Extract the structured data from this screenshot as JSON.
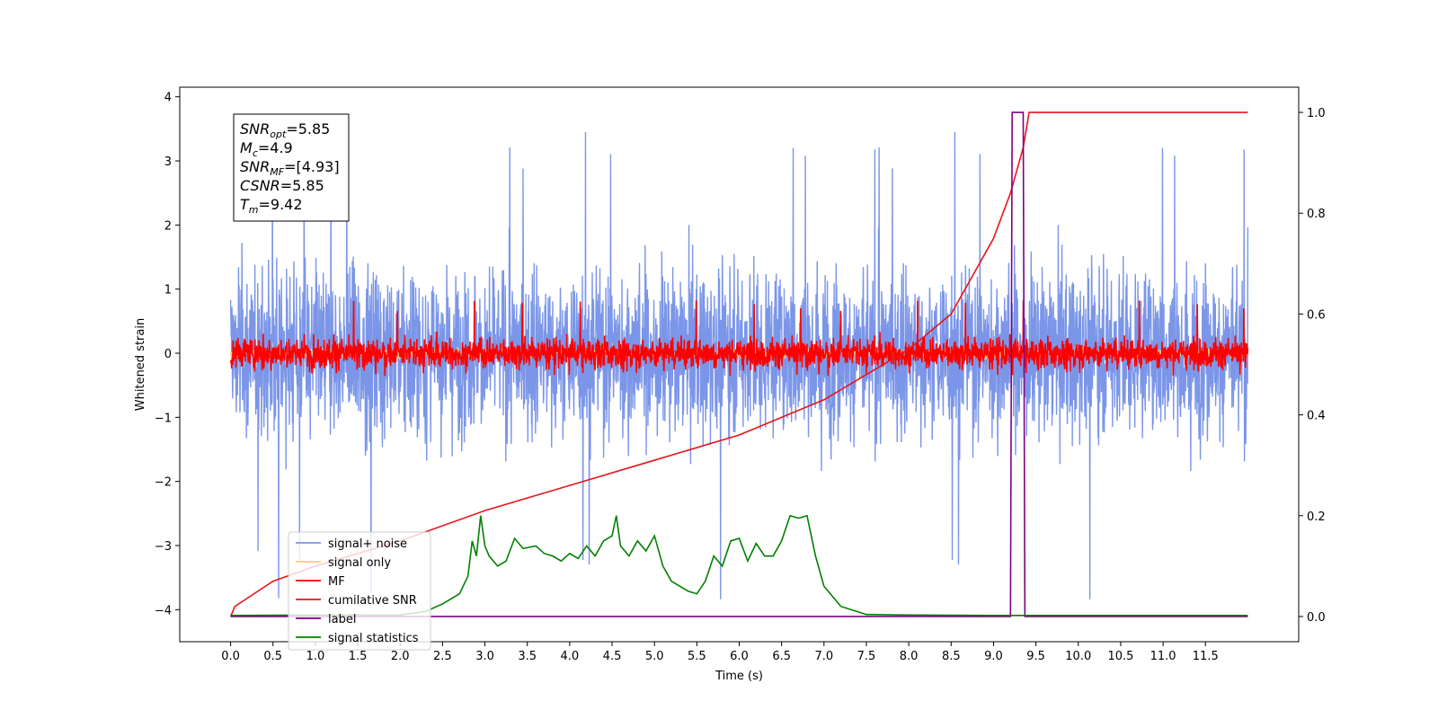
{
  "chart_data": {
    "type": "line",
    "xlabel": "Time (s)",
    "ylabel": "Whitened strain",
    "xlim": [
      -0.6,
      12.6
    ],
    "ylim_left": [
      -4.5,
      4.15
    ],
    "ylim_right": [
      -0.05,
      1.05
    ],
    "x_ticks": [
      "0.0",
      "0.5",
      "1.0",
      "1.5",
      "2.0",
      "2.5",
      "3.0",
      "3.5",
      "4.0",
      "4.5",
      "5.0",
      "5.5",
      "6.0",
      "6.5",
      "7.0",
      "7.5",
      "8.0",
      "8.5",
      "9.0",
      "9.5",
      "10.0",
      "10.5",
      "11.0",
      "11.5"
    ],
    "y_ticks_left": [
      "4",
      "3",
      "2",
      "1",
      "0",
      "−1",
      "−2",
      "−3",
      "−4"
    ],
    "y_ticks_right": [
      "1.0",
      "0.8",
      "0.6",
      "0.4",
      "0.2",
      "0.0"
    ],
    "legend_placement": "lower-left",
    "info_box": {
      "lines": [
        {
          "base": "SNR",
          "sub": "opt",
          "value": "=5.85"
        },
        {
          "base": "M",
          "sub": "c",
          "value": "=4.9"
        },
        {
          "base": "SNR",
          "sub": "MF",
          "value": "=[4.93]"
        },
        {
          "base": "CSNR",
          "sub": "",
          "value": "=5.85"
        },
        {
          "base": "T",
          "sub": "m",
          "value": "=9.42"
        }
      ]
    },
    "series": [
      {
        "name": "signal+ noise",
        "color": "#7b96e8",
        "axis": "left",
        "x_range": [
          0,
          12
        ],
        "envelope": {
          "typical_abs": 1.6,
          "max": 3.75,
          "min": -4.1
        }
      },
      {
        "name": "signal only",
        "color": "#ffc97a",
        "axis": "left",
        "x_range": [
          0,
          12
        ],
        "envelope": {
          "typical_abs": 0.1
        }
      },
      {
        "name": "MF",
        "color": "#ff0000",
        "axis": "left",
        "x_range": [
          0,
          12
        ],
        "envelope": {
          "typical_abs": 0.3,
          "max": 0.85,
          "min": -0.35
        }
      },
      {
        "name": "cumilative SNR",
        "color": "#e8141a",
        "axis": "right",
        "x": [
          0,
          0.05,
          0.5,
          1.0,
          2.0,
          3.0,
          4.0,
          5.0,
          6.0,
          7.0,
          8.0,
          8.5,
          9.0,
          9.2,
          9.35,
          9.42,
          12.0
        ],
        "y": [
          0.0,
          0.02,
          0.07,
          0.1,
          0.15,
          0.21,
          0.26,
          0.31,
          0.36,
          0.43,
          0.53,
          0.6,
          0.75,
          0.84,
          0.93,
          1.0,
          1.0
        ]
      },
      {
        "name": "label",
        "color": "#800080",
        "axis": "right",
        "x": [
          0,
          9.2,
          9.22,
          9.35,
          9.37,
          12.0
        ],
        "y": [
          0,
          0,
          1,
          1,
          0,
          0
        ]
      },
      {
        "name": "signal statistics",
        "color": "#008000",
        "axis": "right",
        "x": [
          0,
          1.0,
          2.0,
          2.3,
          2.5,
          2.7,
          2.8,
          2.85,
          2.9,
          2.95,
          3.0,
          3.05,
          3.15,
          3.25,
          3.35,
          3.45,
          3.6,
          3.7,
          3.8,
          3.9,
          4.0,
          4.1,
          4.2,
          4.3,
          4.4,
          4.5,
          4.55,
          4.6,
          4.7,
          4.8,
          4.9,
          5.0,
          5.1,
          5.2,
          5.3,
          5.4,
          5.5,
          5.6,
          5.7,
          5.8,
          5.9,
          6.0,
          6.1,
          6.2,
          6.3,
          6.4,
          6.5,
          6.6,
          6.7,
          6.8,
          6.9,
          7.0,
          7.2,
          7.5,
          8.0,
          9.0,
          10.0,
          11.0,
          12.0
        ],
        "y": [
          0.002,
          0.003,
          0.003,
          0.01,
          0.025,
          0.045,
          0.08,
          0.15,
          0.12,
          0.2,
          0.14,
          0.12,
          0.1,
          0.11,
          0.155,
          0.135,
          0.14,
          0.125,
          0.12,
          0.11,
          0.125,
          0.115,
          0.14,
          0.12,
          0.15,
          0.16,
          0.2,
          0.14,
          0.12,
          0.15,
          0.13,
          0.16,
          0.1,
          0.07,
          0.06,
          0.05,
          0.045,
          0.07,
          0.12,
          0.1,
          0.15,
          0.155,
          0.11,
          0.145,
          0.12,
          0.12,
          0.15,
          0.2,
          0.195,
          0.2,
          0.12,
          0.06,
          0.02,
          0.004,
          0.003,
          0.002,
          0.002,
          0.002,
          0.002
        ]
      }
    ]
  }
}
